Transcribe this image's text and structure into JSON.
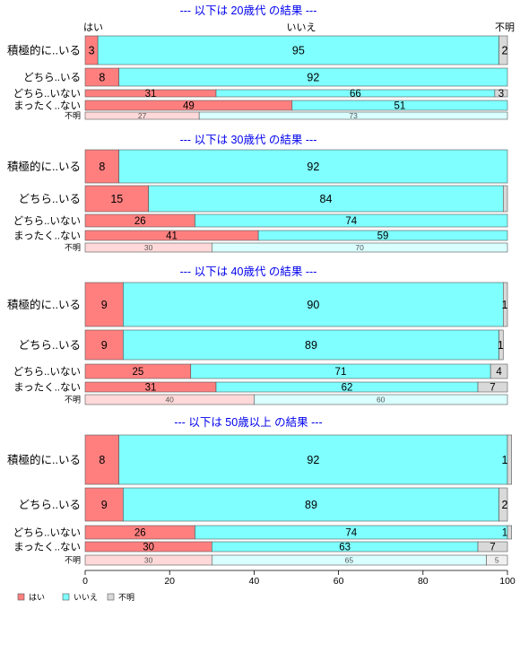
{
  "chart_data": {
    "type": "bar",
    "stacked": true,
    "orientation": "horizontal",
    "series_names": [
      "はい",
      "いいえ",
      "不明"
    ],
    "colors": {
      "strong": [
        "#ff7f7f",
        "#7fffff",
        "#d9d9d9"
      ],
      "light": [
        "#ffd9d9",
        "#d9ffff",
        "#f0f0f0"
      ]
    },
    "column_headers": [
      "はい",
      "いいえ",
      "不明"
    ],
    "x_ticks": [
      "0",
      "20",
      "40",
      "60",
      "80",
      "100"
    ],
    "xlim": [
      0,
      100
    ],
    "legend_position": "bottom-left",
    "panels": [
      {
        "title": "--- 以下は 20歳代 の結果 ---",
        "rows": [
          {
            "label": "積極的に..いる",
            "values": [
              3,
              95,
              2
            ],
            "labels": [
              "3",
              "95",
              "2"
            ],
            "light": false
          },
          {
            "label": "どちら..いる",
            "values": [
              8,
              92,
              0
            ],
            "labels": [
              "8",
              "92",
              ""
            ],
            "light": false
          },
          {
            "label": "どちら..いない",
            "values": [
              31,
              66,
              3
            ],
            "labels": [
              "31",
              "66",
              "3"
            ],
            "light": false
          },
          {
            "label": "まったく..ない",
            "values": [
              49,
              51,
              0
            ],
            "labels": [
              "49",
              "51",
              ""
            ],
            "light": false
          },
          {
            "label": "不明",
            "values": [
              27,
              73,
              0
            ],
            "labels": [
              "27",
              "73",
              ""
            ],
            "light": true
          }
        ]
      },
      {
        "title": "--- 以下は 30歳代 の結果 ---",
        "rows": [
          {
            "label": "積極的に..いる",
            "values": [
              8,
              92,
              0
            ],
            "labels": [
              "8",
              "92",
              ""
            ],
            "light": false
          },
          {
            "label": "どちら..いる",
            "values": [
              15,
              84,
              1
            ],
            "labels": [
              "15",
              "84",
              ""
            ],
            "light": false
          },
          {
            "label": "どちら..いない",
            "values": [
              26,
              74,
              0
            ],
            "labels": [
              "26",
              "74",
              ""
            ],
            "light": false
          },
          {
            "label": "まったく..ない",
            "values": [
              41,
              59,
              0
            ],
            "labels": [
              "41",
              "59",
              ""
            ],
            "light": false
          },
          {
            "label": "不明",
            "values": [
              30,
              70,
              0
            ],
            "labels": [
              "30",
              "70",
              ""
            ],
            "light": true
          }
        ]
      },
      {
        "title": "--- 以下は 40歳代 の結果 ---",
        "rows": [
          {
            "label": "積極的に..いる",
            "values": [
              9,
              90,
              1
            ],
            "labels": [
              "9",
              "90",
              "1"
            ],
            "light": false
          },
          {
            "label": "どちら..いる",
            "values": [
              9,
              89,
              1
            ],
            "labels": [
              "9",
              "89",
              "1"
            ],
            "light": false
          },
          {
            "label": "どちら..いない",
            "values": [
              25,
              71,
              4
            ],
            "labels": [
              "25",
              "71",
              "4"
            ],
            "light": false
          },
          {
            "label": "まったく..ない",
            "values": [
              31,
              62,
              7
            ],
            "labels": [
              "31",
              "62",
              "7"
            ],
            "light": false
          },
          {
            "label": "不明",
            "values": [
              40,
              60,
              0
            ],
            "labels": [
              "40",
              "60",
              ""
            ],
            "light": true
          }
        ]
      },
      {
        "title": "--- 以下は 50歳以上 の結果 ---",
        "rows": [
          {
            "label": "積極的に..いる",
            "values": [
              8,
              92,
              1
            ],
            "labels": [
              "8",
              "92",
              "1"
            ],
            "light": false
          },
          {
            "label": "どちら..いる",
            "values": [
              9,
              89,
              2
            ],
            "labels": [
              "9",
              "89",
              "2"
            ],
            "light": false
          },
          {
            "label": "どちら..いない",
            "values": [
              26,
              74,
              1
            ],
            "labels": [
              "26",
              "74",
              "1"
            ],
            "light": false
          },
          {
            "label": "まったく..ない",
            "values": [
              30,
              63,
              7
            ],
            "labels": [
              "30",
              "63",
              "7"
            ],
            "light": false
          },
          {
            "label": "不明",
            "values": [
              30,
              65,
              5
            ],
            "labels": [
              "30",
              "65",
              "5"
            ],
            "light": true
          }
        ]
      }
    ]
  }
}
